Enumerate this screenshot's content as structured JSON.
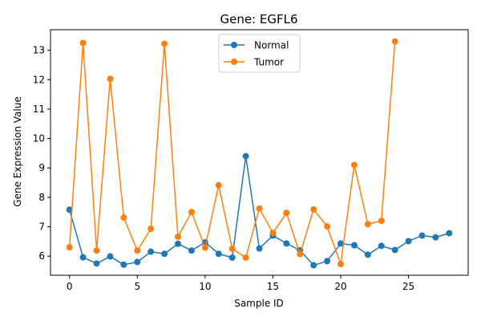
{
  "chart_data": {
    "type": "line",
    "title": "Gene: EGFL6",
    "xlabel": "Sample ID",
    "ylabel": "Gene Expression Value",
    "xlim": [
      -1.4,
      29.4
    ],
    "ylim": [
      5.35,
      13.7
    ],
    "x_ticks": [
      0,
      5,
      10,
      15,
      20,
      25
    ],
    "y_ticks": [
      6,
      7,
      8,
      9,
      10,
      11,
      12,
      13
    ],
    "grid": false,
    "legend_position": "top-center",
    "series": [
      {
        "name": "Normal",
        "color": "#1f77b4",
        "marker": "circle",
        "x": [
          0,
          1,
          2,
          3,
          4,
          5,
          6,
          7,
          8,
          9,
          10,
          11,
          12,
          13,
          14,
          15,
          16,
          17,
          18,
          19,
          20,
          21,
          22,
          23,
          24,
          25,
          26,
          27,
          28
        ],
        "values": [
          7.58,
          5.96,
          5.75,
          5.99,
          5.71,
          5.8,
          6.15,
          6.08,
          6.42,
          6.19,
          6.47,
          6.08,
          5.95,
          9.4,
          6.26,
          6.7,
          6.43,
          6.2,
          5.69,
          5.83,
          6.43,
          6.37,
          6.05,
          6.35,
          6.21,
          6.51,
          6.7,
          6.64,
          6.78
        ]
      },
      {
        "name": "Tumor",
        "color": "#ff7f0e",
        "marker": "circle",
        "x": [
          0,
          1,
          2,
          3,
          4,
          5,
          6,
          7,
          8,
          9,
          10,
          11,
          12,
          13,
          14,
          15,
          16,
          17,
          18,
          19,
          20,
          21,
          22,
          23,
          24
        ],
        "values": [
          6.3,
          13.25,
          6.19,
          12.03,
          7.31,
          6.19,
          6.93,
          13.22,
          6.66,
          7.5,
          6.29,
          8.41,
          6.25,
          5.95,
          7.62,
          6.79,
          7.47,
          6.07,
          7.59,
          7.01,
          5.73,
          9.1,
          7.09,
          7.2,
          13.3
        ]
      }
    ]
  }
}
